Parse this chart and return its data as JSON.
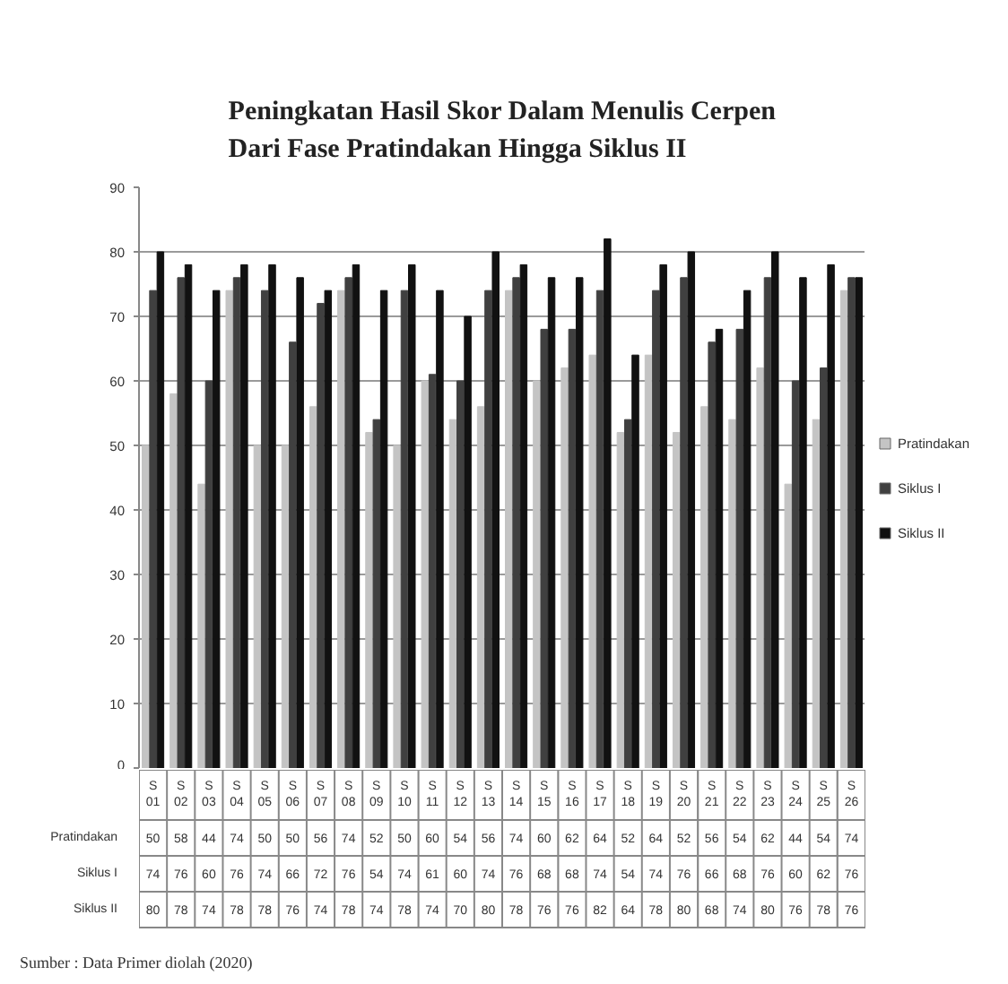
{
  "chart_data": {
    "type": "bar",
    "title": "Peningkatan Hasil Skor Dalam Menulis Cerpen Dari Fase Pratindakan Hingga Siklus II",
    "categories": [
      "S 01",
      "S 02",
      "S 03",
      "S 04",
      "S 05",
      "S 06",
      "S 07",
      "S 08",
      "S 09",
      "S 10",
      "S 11",
      "S 12",
      "S 13",
      "S 14",
      "S 15",
      "S 16",
      "S 17",
      "S 18",
      "S 19",
      "S 20",
      "S 21",
      "S 22",
      "S 23",
      "S 24",
      "S 25",
      "S 26"
    ],
    "series": [
      {
        "name": "Pratindakan",
        "color": "#c4c4c4",
        "values": [
          50,
          58,
          44,
          74,
          50,
          50,
          56,
          74,
          52,
          50,
          60,
          54,
          56,
          74,
          60,
          62,
          64,
          52,
          64,
          52,
          56,
          54,
          62,
          44,
          54,
          74
        ]
      },
      {
        "name": "Siklus I",
        "color": "#404040",
        "values": [
          74,
          76,
          60,
          76,
          74,
          66,
          72,
          76,
          54,
          74,
          61,
          60,
          74,
          76,
          68,
          68,
          74,
          54,
          74,
          76,
          66,
          68,
          76,
          60,
          62,
          76
        ]
      },
      {
        "name": "Siklus II",
        "color": "#111111",
        "values": [
          80,
          78,
          74,
          78,
          78,
          76,
          74,
          78,
          74,
          78,
          74,
          70,
          80,
          78,
          76,
          76,
          82,
          64,
          78,
          80,
          68,
          74,
          80,
          76,
          78,
          76
        ]
      }
    ],
    "ylim": [
      0,
      90
    ],
    "yticks": [
      0,
      10,
      20,
      30,
      40,
      50,
      60,
      70,
      80,
      90
    ],
    "grid": "y",
    "legend": "right",
    "data_labels": true,
    "annotations": [
      "Sumber : Data Primer diolah (2020)"
    ]
  }
}
